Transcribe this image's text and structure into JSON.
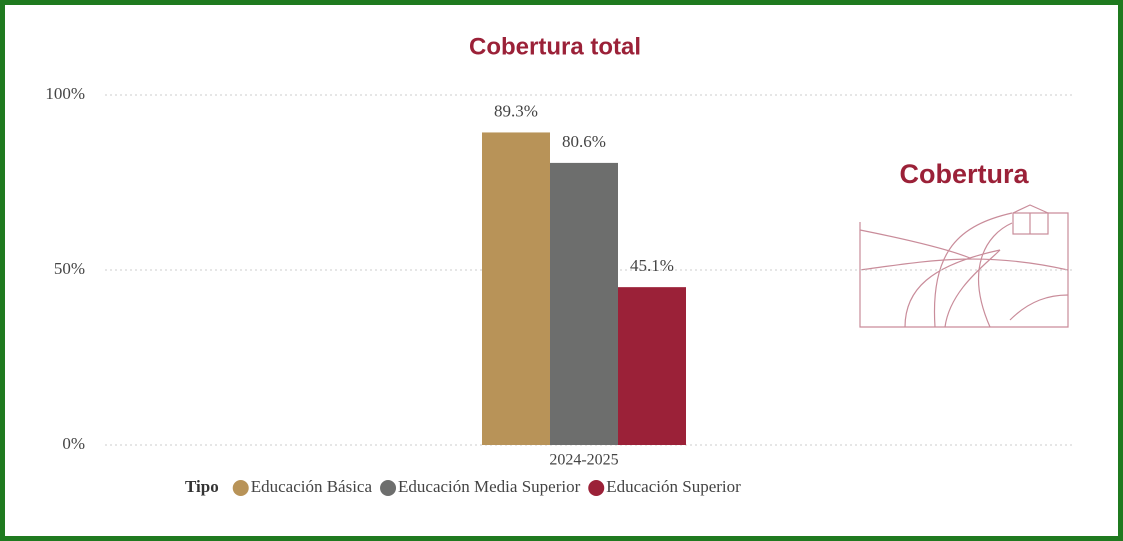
{
  "chart_data": {
    "type": "bar",
    "title": "Cobertura total",
    "categories": [
      "2024-2025"
    ],
    "series": [
      {
        "name": "Educación Básica",
        "color": "#b89358",
        "values": [
          89.3
        ],
        "value_labels": [
          "89.3%"
        ]
      },
      {
        "name": "Educación Media Superior",
        "color": "#6d6e6d",
        "values": [
          80.6
        ],
        "value_labels": [
          "80.6%"
        ]
      },
      {
        "name": "Educación Superior",
        "color": "#9b2138",
        "values": [
          45.1
        ],
        "value_labels": [
          "45.1%"
        ]
      }
    ],
    "legend_title": "Tipo",
    "ylim": [
      0,
      100
    ],
    "yticks": [
      {
        "value": 0,
        "label": "0%"
      },
      {
        "value": 50,
        "label": "50%"
      },
      {
        "value": 100,
        "label": "100%"
      }
    ],
    "grid": true
  },
  "logo": {
    "text": "Cobertura"
  }
}
